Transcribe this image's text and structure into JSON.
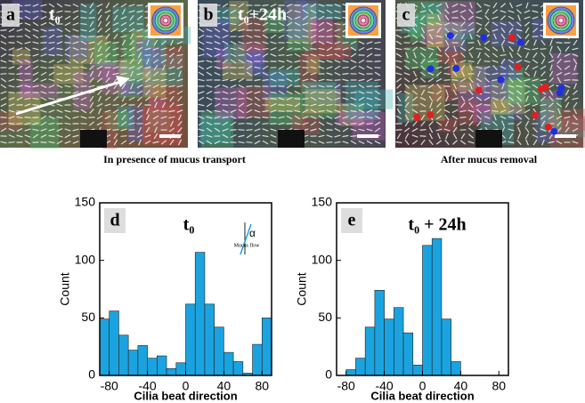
{
  "panels": [
    {
      "label": "a",
      "title": "t₀"
    },
    {
      "label": "b",
      "title": "t₀+24h"
    },
    {
      "label": "c"
    }
  ],
  "captions": [
    "In presence of mucus transport",
    "After mucus removal"
  ],
  "chart_data": [
    {
      "type": "histogram",
      "label": "d",
      "title": "t₀",
      "annotations": [
        "α",
        "Mucus flow"
      ],
      "bins": [
        -90,
        -80,
        -70,
        -60,
        -50,
        -40,
        -30,
        -20,
        -10,
        0,
        10,
        20,
        30,
        40,
        50,
        60,
        70,
        80,
        90
      ],
      "values": [
        49,
        56,
        35,
        22,
        26,
        15,
        17,
        6,
        11,
        62,
        107,
        62,
        42,
        20,
        12,
        2,
        27,
        50
      ],
      "color": "#1ba3e0",
      "xlim": [
        -90,
        90
      ],
      "ylim": [
        0,
        150
      ],
      "xticks": [
        -80,
        -40,
        0,
        40,
        80
      ],
      "yticks": [
        0,
        50,
        100,
        150
      ],
      "xlabel": "Cilia beat direction",
      "ylabel": "Count"
    },
    {
      "type": "histogram",
      "label": "e",
      "title": "t₀ + 24h",
      "bins": [
        -80,
        -70,
        -60,
        -50,
        -40,
        -30,
        -20,
        -10,
        0,
        10,
        20,
        30,
        40
      ],
      "values": [
        5,
        15,
        42,
        74,
        49,
        59,
        37,
        9,
        113,
        119,
        49,
        12
      ],
      "color": "#1ba3e0",
      "xlim": [
        -90,
        90
      ],
      "ylim": [
        0,
        150
      ],
      "xticks": [
        -80,
        -40,
        0,
        40,
        80
      ],
      "yticks": [
        0,
        50,
        100,
        150
      ],
      "xlabel": "Cilia beat direction",
      "ylabel": "Count"
    }
  ]
}
